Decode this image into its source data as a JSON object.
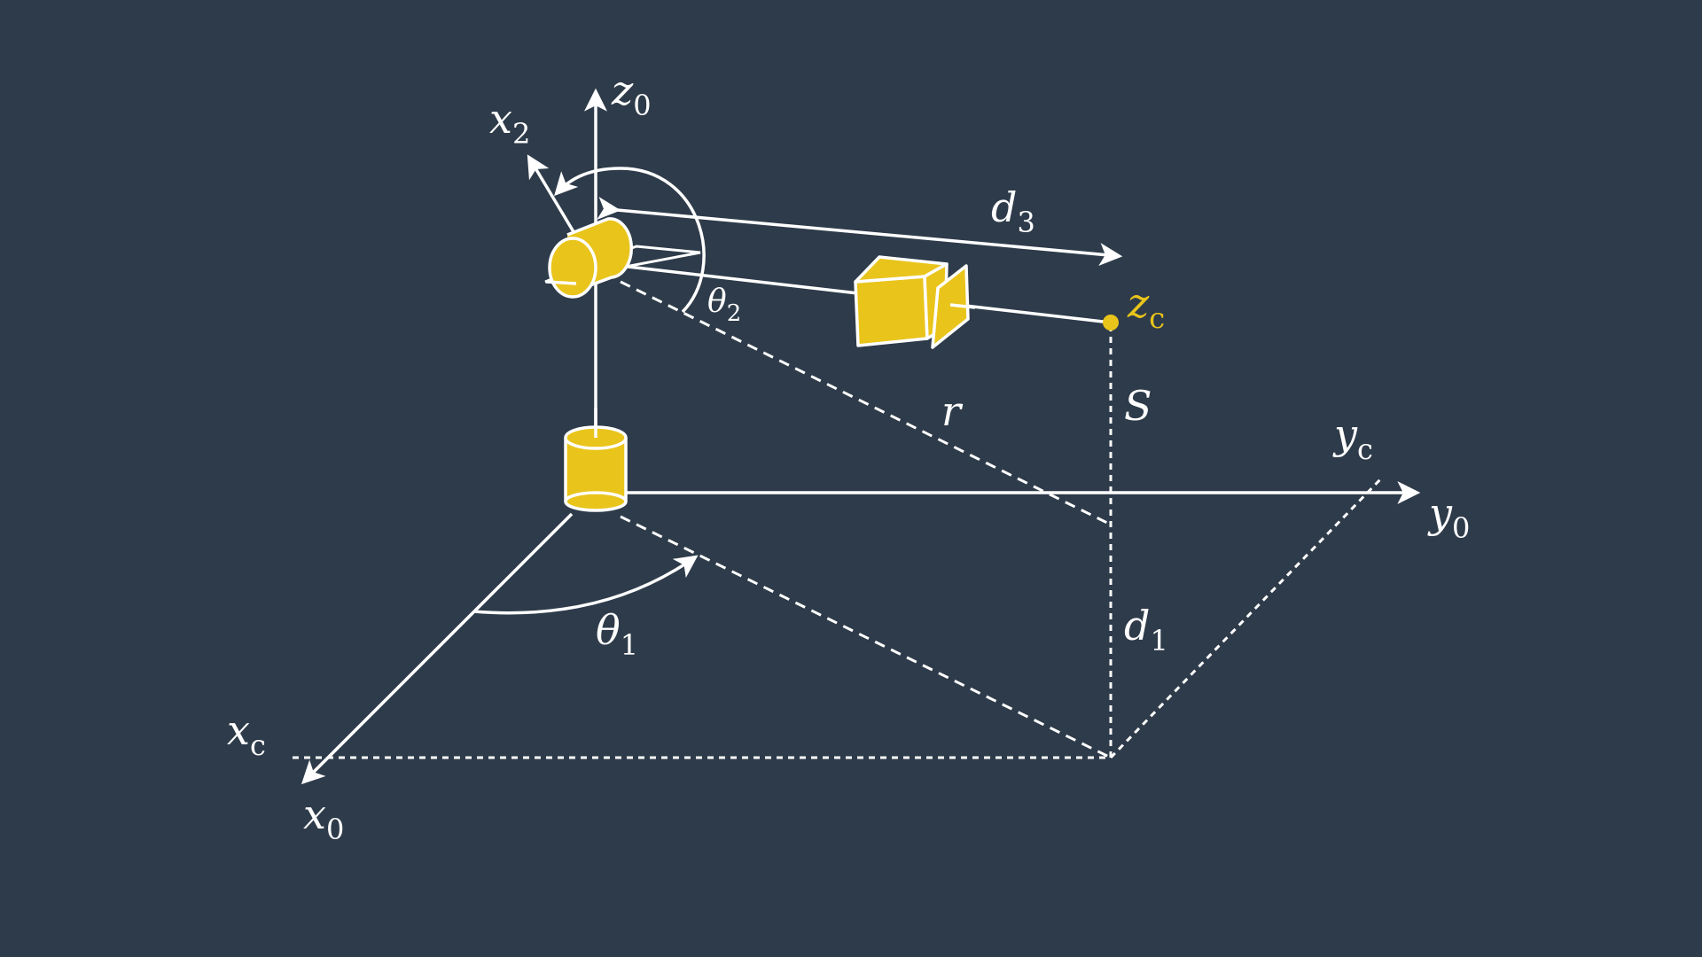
{
  "colors": {
    "background": "#2e3b4a",
    "lines": "#ffffff",
    "accent": "#e9c41b"
  },
  "labels": {
    "z0": {
      "base": "z",
      "sub": "0"
    },
    "x2": {
      "base": "x",
      "sub": "2"
    },
    "d3": {
      "base": "d",
      "sub": "3"
    },
    "theta2": {
      "base": "θ",
      "sub": "2"
    },
    "zc": {
      "base": "z",
      "sub": "c"
    },
    "r": {
      "base": "r"
    },
    "S": {
      "base": "S"
    },
    "yc": {
      "base": "y",
      "sub": "c"
    },
    "y0": {
      "base": "y",
      "sub": "0"
    },
    "theta1": {
      "base": "θ",
      "sub": "1"
    },
    "d1": {
      "base": "d",
      "sub": "1"
    },
    "xc": {
      "base": "x",
      "sub": "c"
    },
    "x0": {
      "base": "x",
      "sub": "0"
    }
  }
}
